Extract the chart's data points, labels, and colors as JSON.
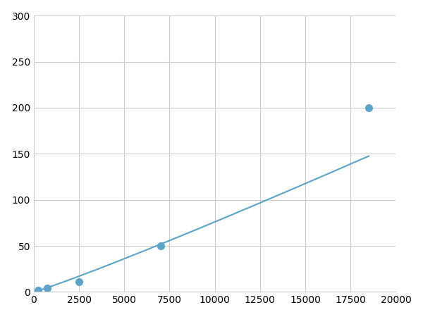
{
  "x_points": [
    250,
    750,
    2500,
    7000,
    18500
  ],
  "y_points": [
    2,
    4,
    11,
    50,
    200
  ],
  "line_color": "#5ba3c9",
  "marker_color": "#5ba3c9",
  "marker_size": 7,
  "marker_style": "o",
  "line_width": 1.5,
  "xlim": [
    0,
    20000
  ],
  "ylim": [
    0,
    300
  ],
  "xticks": [
    0,
    2500,
    5000,
    7500,
    10000,
    12500,
    15000,
    17500,
    20000
  ],
  "yticks": [
    0,
    50,
    100,
    150,
    200,
    250,
    300
  ],
  "xtick_labels": [
    "0",
    "2500",
    "5000",
    "7500",
    "10000",
    "12500",
    "15000",
    "17500",
    "20000"
  ],
  "ytick_labels": [
    "0",
    "50",
    "100",
    "150",
    "200",
    "250",
    "300"
  ],
  "grid_color": "#cccccc",
  "grid_linewidth": 0.8,
  "background_color": "#ffffff",
  "spine_color": "#cccccc",
  "tick_labelsize": 10,
  "figsize": [
    6.0,
    4.5
  ],
  "dpi": 100
}
